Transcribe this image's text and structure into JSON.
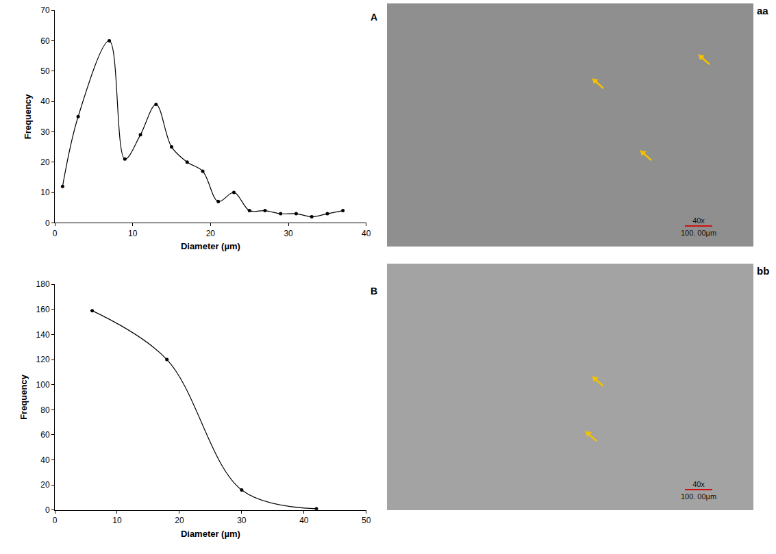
{
  "chart_data": [
    {
      "panel": "A",
      "type": "line",
      "x": [
        1,
        3,
        7,
        9,
        11,
        13,
        15,
        17,
        19,
        21,
        23,
        25,
        27,
        29,
        31,
        33,
        35,
        37
      ],
      "values": [
        12,
        35,
        60,
        21,
        29,
        39,
        25,
        20,
        17,
        7,
        10,
        4,
        4,
        3,
        3,
        2,
        3,
        4
      ],
      "xlabel": "Diameter (µm)",
      "ylabel": "Frequency",
      "xlim": [
        0,
        40
      ],
      "xticks": [
        0,
        10,
        20,
        30,
        40
      ],
      "ylim": [
        0,
        70
      ],
      "yticks": [
        0,
        10,
        20,
        30,
        40,
        50,
        60,
        70
      ],
      "color": "#000000",
      "marker": "circle",
      "line_style": "solid",
      "grid": false
    },
    {
      "panel": "B",
      "type": "line",
      "x": [
        6,
        18,
        30,
        42
      ],
      "values": [
        159,
        120,
        16,
        1
      ],
      "xlabel": "Diameter (µm)",
      "ylabel": "Frequency",
      "xlim": [
        0,
        50
      ],
      "xticks": [
        0,
        10,
        20,
        30,
        40,
        50
      ],
      "ylim": [
        0,
        180
      ],
      "yticks": [
        0,
        20,
        40,
        60,
        80,
        100,
        120,
        140,
        160,
        180
      ],
      "color": "#000000",
      "marker": "circle",
      "line_style": "solid",
      "grid": false
    }
  ],
  "images": [
    {
      "label": "aa",
      "magnification": "40x",
      "scale_bar": "100. 00µm"
    },
    {
      "label": "bb",
      "magnification": "40x",
      "scale_bar": "100. 00µm"
    }
  ]
}
